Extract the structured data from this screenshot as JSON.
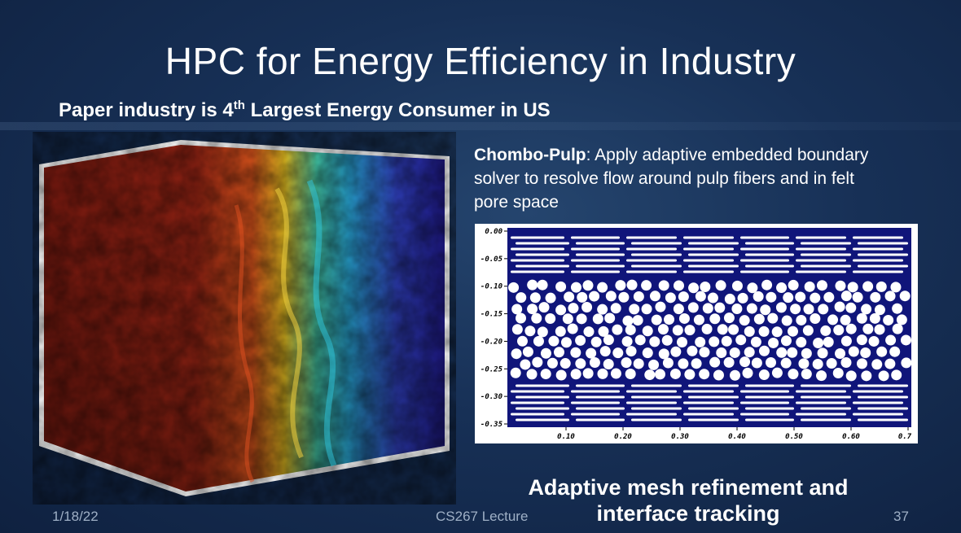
{
  "slide": {
    "title": "HPC for Energy Efficiency in Industry",
    "subtitle_pre": "Paper industry is 4",
    "subtitle_sup": "th",
    "subtitle_post": " Largest Energy Consumer in US",
    "description_bold": "Chombo-Pulp",
    "description_rest": ": Apply adaptive embedded boundary solver to resolve flow around pulp fibers and in felt pore space",
    "bottom_caption_line1": "Adaptive mesh refinement and",
    "bottom_caption_line2": "interface tracking"
  },
  "footer": {
    "date": "1/18/22",
    "lecture": "CS267 Lecture",
    "page": "37"
  },
  "pore_plot": {
    "y_ticks": [
      "0.00",
      "-0.05",
      "-0.10",
      "-0.15",
      "-0.20",
      "-0.25",
      "-0.30",
      "-0.35"
    ],
    "x_ticks": [
      "0.10",
      "0.20",
      "0.30",
      "0.40",
      "0.50",
      "0.60",
      "0.7"
    ],
    "background_color": "#10157a",
    "fiber_color": "#ffffff"
  },
  "colors": {
    "background": "#173056",
    "simulation_hot": "#8b1a12",
    "simulation_mid": "#e0b020",
    "simulation_cool": "#2a2aa0"
  }
}
